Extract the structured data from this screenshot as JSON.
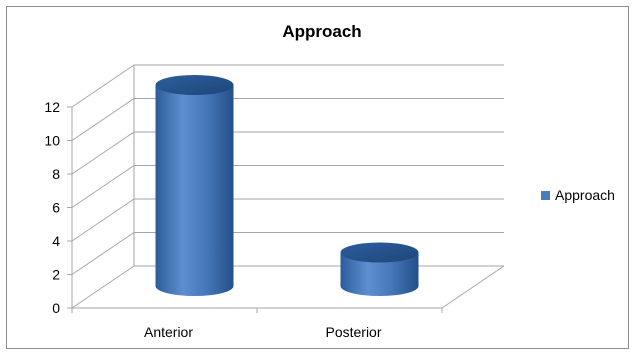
{
  "chart_data": {
    "type": "bar",
    "style": "3d-cylinder",
    "title": "Approach",
    "xlabel": "",
    "ylabel": "",
    "categories": [
      "Anterior",
      "Posterior"
    ],
    "series": [
      {
        "name": "Approach",
        "values": [
          12,
          2
        ]
      }
    ],
    "ylim": [
      0,
      12
    ],
    "yticks": [
      0,
      2,
      4,
      6,
      8,
      10,
      12
    ],
    "grid": true,
    "legend_position": "right",
    "colors": {
      "bar": "#4a7ebb",
      "bar_dark": "#1f4a80",
      "bar_light": "#7aa6dc",
      "gridline": "#a6a6a6"
    }
  }
}
